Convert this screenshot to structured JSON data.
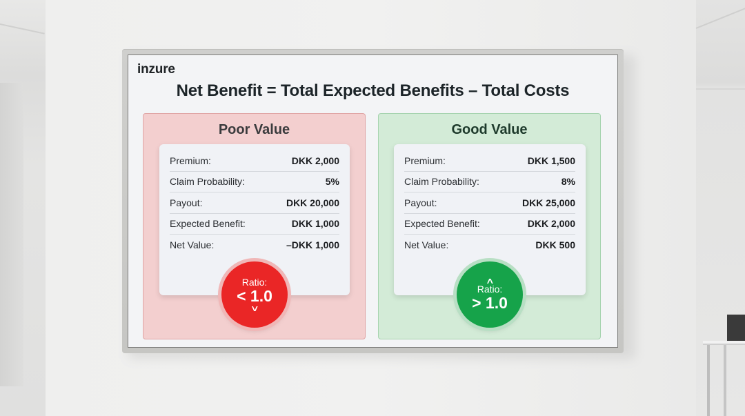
{
  "brand": "inzure",
  "headline": "Net Benefit = Total Expected Benefits – Total Costs",
  "colors": {
    "poor_panel_bg": "#f3cfcf",
    "poor_badge": "#ea2626",
    "good_panel_bg": "#d3ebd7",
    "good_badge": "#16a34a",
    "text_dark": "#1c2428"
  },
  "panels": {
    "poor": {
      "title": "Poor Value",
      "rows": [
        {
          "label": "Premium:",
          "value": "DKK 2,000"
        },
        {
          "label": "Claim Probability:",
          "value": "5%"
        },
        {
          "label": "Payout:",
          "value": "DKK 20,000"
        },
        {
          "label": "Expected Benefit:",
          "value": "DKK 1,000"
        },
        {
          "label": "Net Value:",
          "value": "–DKK 1,000"
        }
      ],
      "badge": {
        "label": "Ratio:",
        "value": "< 1.0",
        "icon": "chevron-down-icon",
        "glyph": "∨"
      }
    },
    "good": {
      "title": "Good Value",
      "rows": [
        {
          "label": "Premium:",
          "value": "DKK 1,500"
        },
        {
          "label": "Claim Probability:",
          "value": "8%"
        },
        {
          "label": "Payout:",
          "value": "DKK 25,000"
        },
        {
          "label": "Expected Benefit:",
          "value": "DKK 2,000"
        },
        {
          "label": "Net Value:",
          "value": "DKK 500"
        }
      ],
      "badge": {
        "label": "Ratio:",
        "value": "> 1.0",
        "icon": "chevron-up-icon",
        "glyph": "∧"
      }
    }
  }
}
